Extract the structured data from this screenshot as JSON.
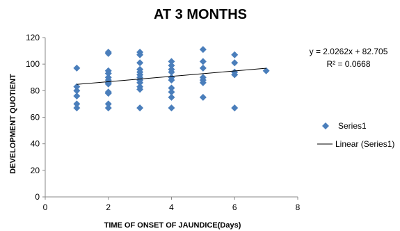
{
  "chart_data": {
    "type": "scatter",
    "title": "AT 3 MONTHS",
    "xlabel": "TIME OF ONSET OF JAUNDICE(Days)",
    "ylabel": "DEVELOPMENT QUOTIENT",
    "xlim": [
      0,
      8
    ],
    "ylim": [
      0,
      120
    ],
    "x_ticks": [
      "0",
      "2",
      "4",
      "6",
      "8"
    ],
    "y_ticks": [
      "0",
      "20",
      "40",
      "60",
      "80",
      "100",
      "120"
    ],
    "grid": false,
    "legend_position": "right",
    "series": [
      {
        "name": "Series1",
        "marker": "diamond",
        "color": "#4a7ebb",
        "points": [
          [
            1,
            97
          ],
          [
            1,
            83
          ],
          [
            1,
            80
          ],
          [
            1,
            76
          ],
          [
            1,
            70
          ],
          [
            1,
            67
          ],
          [
            2,
            109
          ],
          [
            2,
            108
          ],
          [
            2,
            95
          ],
          [
            2,
            93
          ],
          [
            2,
            90
          ],
          [
            2,
            88
          ],
          [
            2,
            86
          ],
          [
            2,
            85
          ],
          [
            2,
            79
          ],
          [
            2,
            78
          ],
          [
            2,
            70
          ],
          [
            2,
            67
          ],
          [
            3,
            109
          ],
          [
            3,
            107
          ],
          [
            3,
            101
          ],
          [
            3,
            96
          ],
          [
            3,
            94
          ],
          [
            3,
            92
          ],
          [
            3,
            90
          ],
          [
            3,
            88
          ],
          [
            3,
            86
          ],
          [
            3,
            83
          ],
          [
            3,
            81
          ],
          [
            3,
            67
          ],
          [
            4,
            102
          ],
          [
            4,
            99
          ],
          [
            4,
            96
          ],
          [
            4,
            94
          ],
          [
            4,
            90
          ],
          [
            4,
            88
          ],
          [
            4,
            82
          ],
          [
            4,
            79
          ],
          [
            4,
            75
          ],
          [
            4,
            67
          ],
          [
            5,
            111
          ],
          [
            5,
            102
          ],
          [
            5,
            97
          ],
          [
            5,
            90
          ],
          [
            5,
            88
          ],
          [
            5,
            86
          ],
          [
            5,
            75
          ],
          [
            6,
            107
          ],
          [
            6,
            101
          ],
          [
            6,
            94
          ],
          [
            6,
            92
          ],
          [
            6,
            67
          ],
          [
            7,
            95
          ]
        ]
      }
    ],
    "trendline": {
      "name": "Linear (Series1)",
      "slope": 2.0262,
      "intercept": 82.705,
      "x_range": [
        1,
        7
      ],
      "equation": "y = 2.0262x + 82.705",
      "r2": "R² = 0.0668",
      "color": "#000000"
    }
  }
}
